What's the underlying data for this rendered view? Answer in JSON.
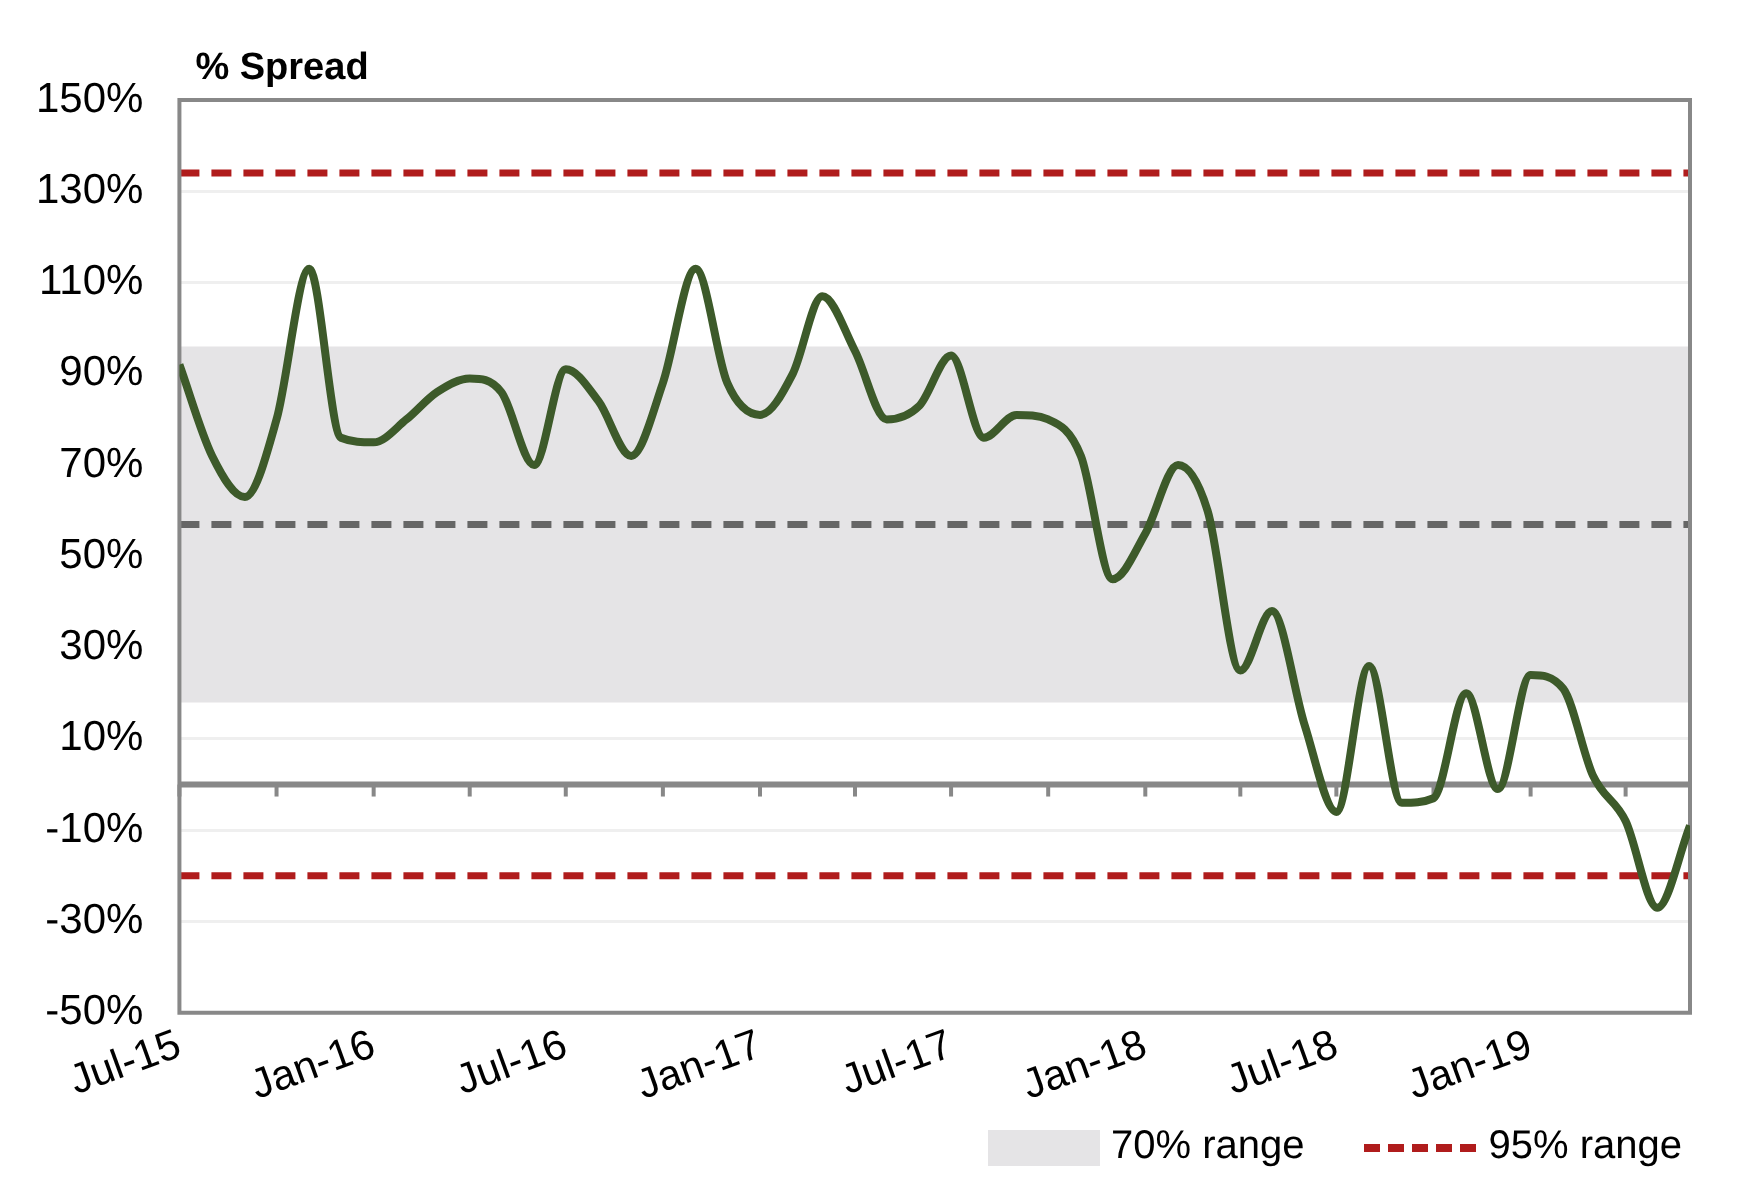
{
  "chart_data": {
    "type": "line",
    "ylabel": "% Spread",
    "x": [
      "2015-07",
      "2015-08",
      "2015-09",
      "2015-10",
      "2015-11",
      "2015-12",
      "2016-01",
      "2016-02",
      "2016-03",
      "2016-04",
      "2016-05",
      "2016-06",
      "2016-07",
      "2016-08",
      "2016-09",
      "2016-10",
      "2016-11",
      "2016-12",
      "2017-01",
      "2017-02",
      "2017-03",
      "2017-04",
      "2017-05",
      "2017-06",
      "2017-07",
      "2017-08",
      "2017-09",
      "2017-10",
      "2017-11",
      "2017-12",
      "2018-01",
      "2018-02",
      "2018-03",
      "2018-04",
      "2018-05",
      "2018-06",
      "2018-07",
      "2018-08",
      "2018-09",
      "2018-10",
      "2018-11",
      "2018-12",
      "2019-01",
      "2019-02",
      "2019-03",
      "2019-04",
      "2019-05",
      "2019-06"
    ],
    "series": [
      {
        "color": "#3d5a2a",
        "values": [
          92,
          72,
          63,
          80,
          113,
          76,
          75,
          80,
          86,
          89,
          86,
          70,
          91,
          84,
          72,
          88,
          113,
          88,
          81,
          90,
          107,
          95,
          80,
          83,
          94,
          76,
          81,
          80,
          72,
          45,
          55,
          70,
          60,
          25,
          38,
          13,
          -6,
          26,
          -4,
          -3,
          20,
          -1,
          24,
          21,
          2,
          -8,
          -27,
          -9
        ]
      }
    ],
    "xlim": [
      "2015-07",
      "2019-06"
    ],
    "xticks": [
      {
        "value": "2015-07",
        "label": "Jul-15"
      },
      {
        "value": "2015-10",
        "label": null
      },
      {
        "value": "2016-01",
        "label": "Jan-16"
      },
      {
        "value": "2016-04",
        "label": null
      },
      {
        "value": "2016-07",
        "label": "Jul-16"
      },
      {
        "value": "2016-10",
        "label": null
      },
      {
        "value": "2017-01",
        "label": "Jan-17"
      },
      {
        "value": "2017-04",
        "label": null
      },
      {
        "value": "2017-07",
        "label": "Jul-17"
      },
      {
        "value": "2017-10",
        "label": null
      },
      {
        "value": "2018-01",
        "label": "Jan-18"
      },
      {
        "value": "2018-04",
        "label": null
      },
      {
        "value": "2018-07",
        "label": "Jul-18"
      },
      {
        "value": "2018-10",
        "label": null
      },
      {
        "value": "2019-01",
        "label": "Jan-19"
      },
      {
        "value": "2019-04",
        "label": null
      }
    ],
    "ylim": [
      -50,
      150
    ],
    "yticks": [
      {
        "value": -50,
        "label": "-50%"
      },
      {
        "value": -30,
        "label": "-30%"
      },
      {
        "value": -10,
        "label": "-10%"
      },
      {
        "value": 10,
        "label": "10%"
      },
      {
        "value": 30,
        "label": "30%"
      },
      {
        "value": 50,
        "label": "50%"
      },
      {
        "value": 70,
        "label": "70%"
      },
      {
        "value": 90,
        "label": "90%"
      },
      {
        "value": 110,
        "label": "110%"
      },
      {
        "value": 130,
        "label": "130%"
      },
      {
        "value": 150,
        "label": "150%"
      }
    ],
    "grid": "y",
    "bands": [
      {
        "axis": "y",
        "from": 18,
        "to": 96,
        "label": "70% range",
        "color": "#e5e4e6"
      }
    ],
    "ref_lines": [
      {
        "axis": "y",
        "value": 57,
        "color": "#666666",
        "line_style": "dashed"
      },
      {
        "axis": "y",
        "value": 134,
        "label": "95% range",
        "color": "#b01c1c",
        "line_style": "dashed"
      },
      {
        "axis": "y",
        "value": -20,
        "color": "#b01c1c",
        "line_style": "dashed"
      }
    ],
    "legend": "bottom",
    "line_style": "solid"
  }
}
